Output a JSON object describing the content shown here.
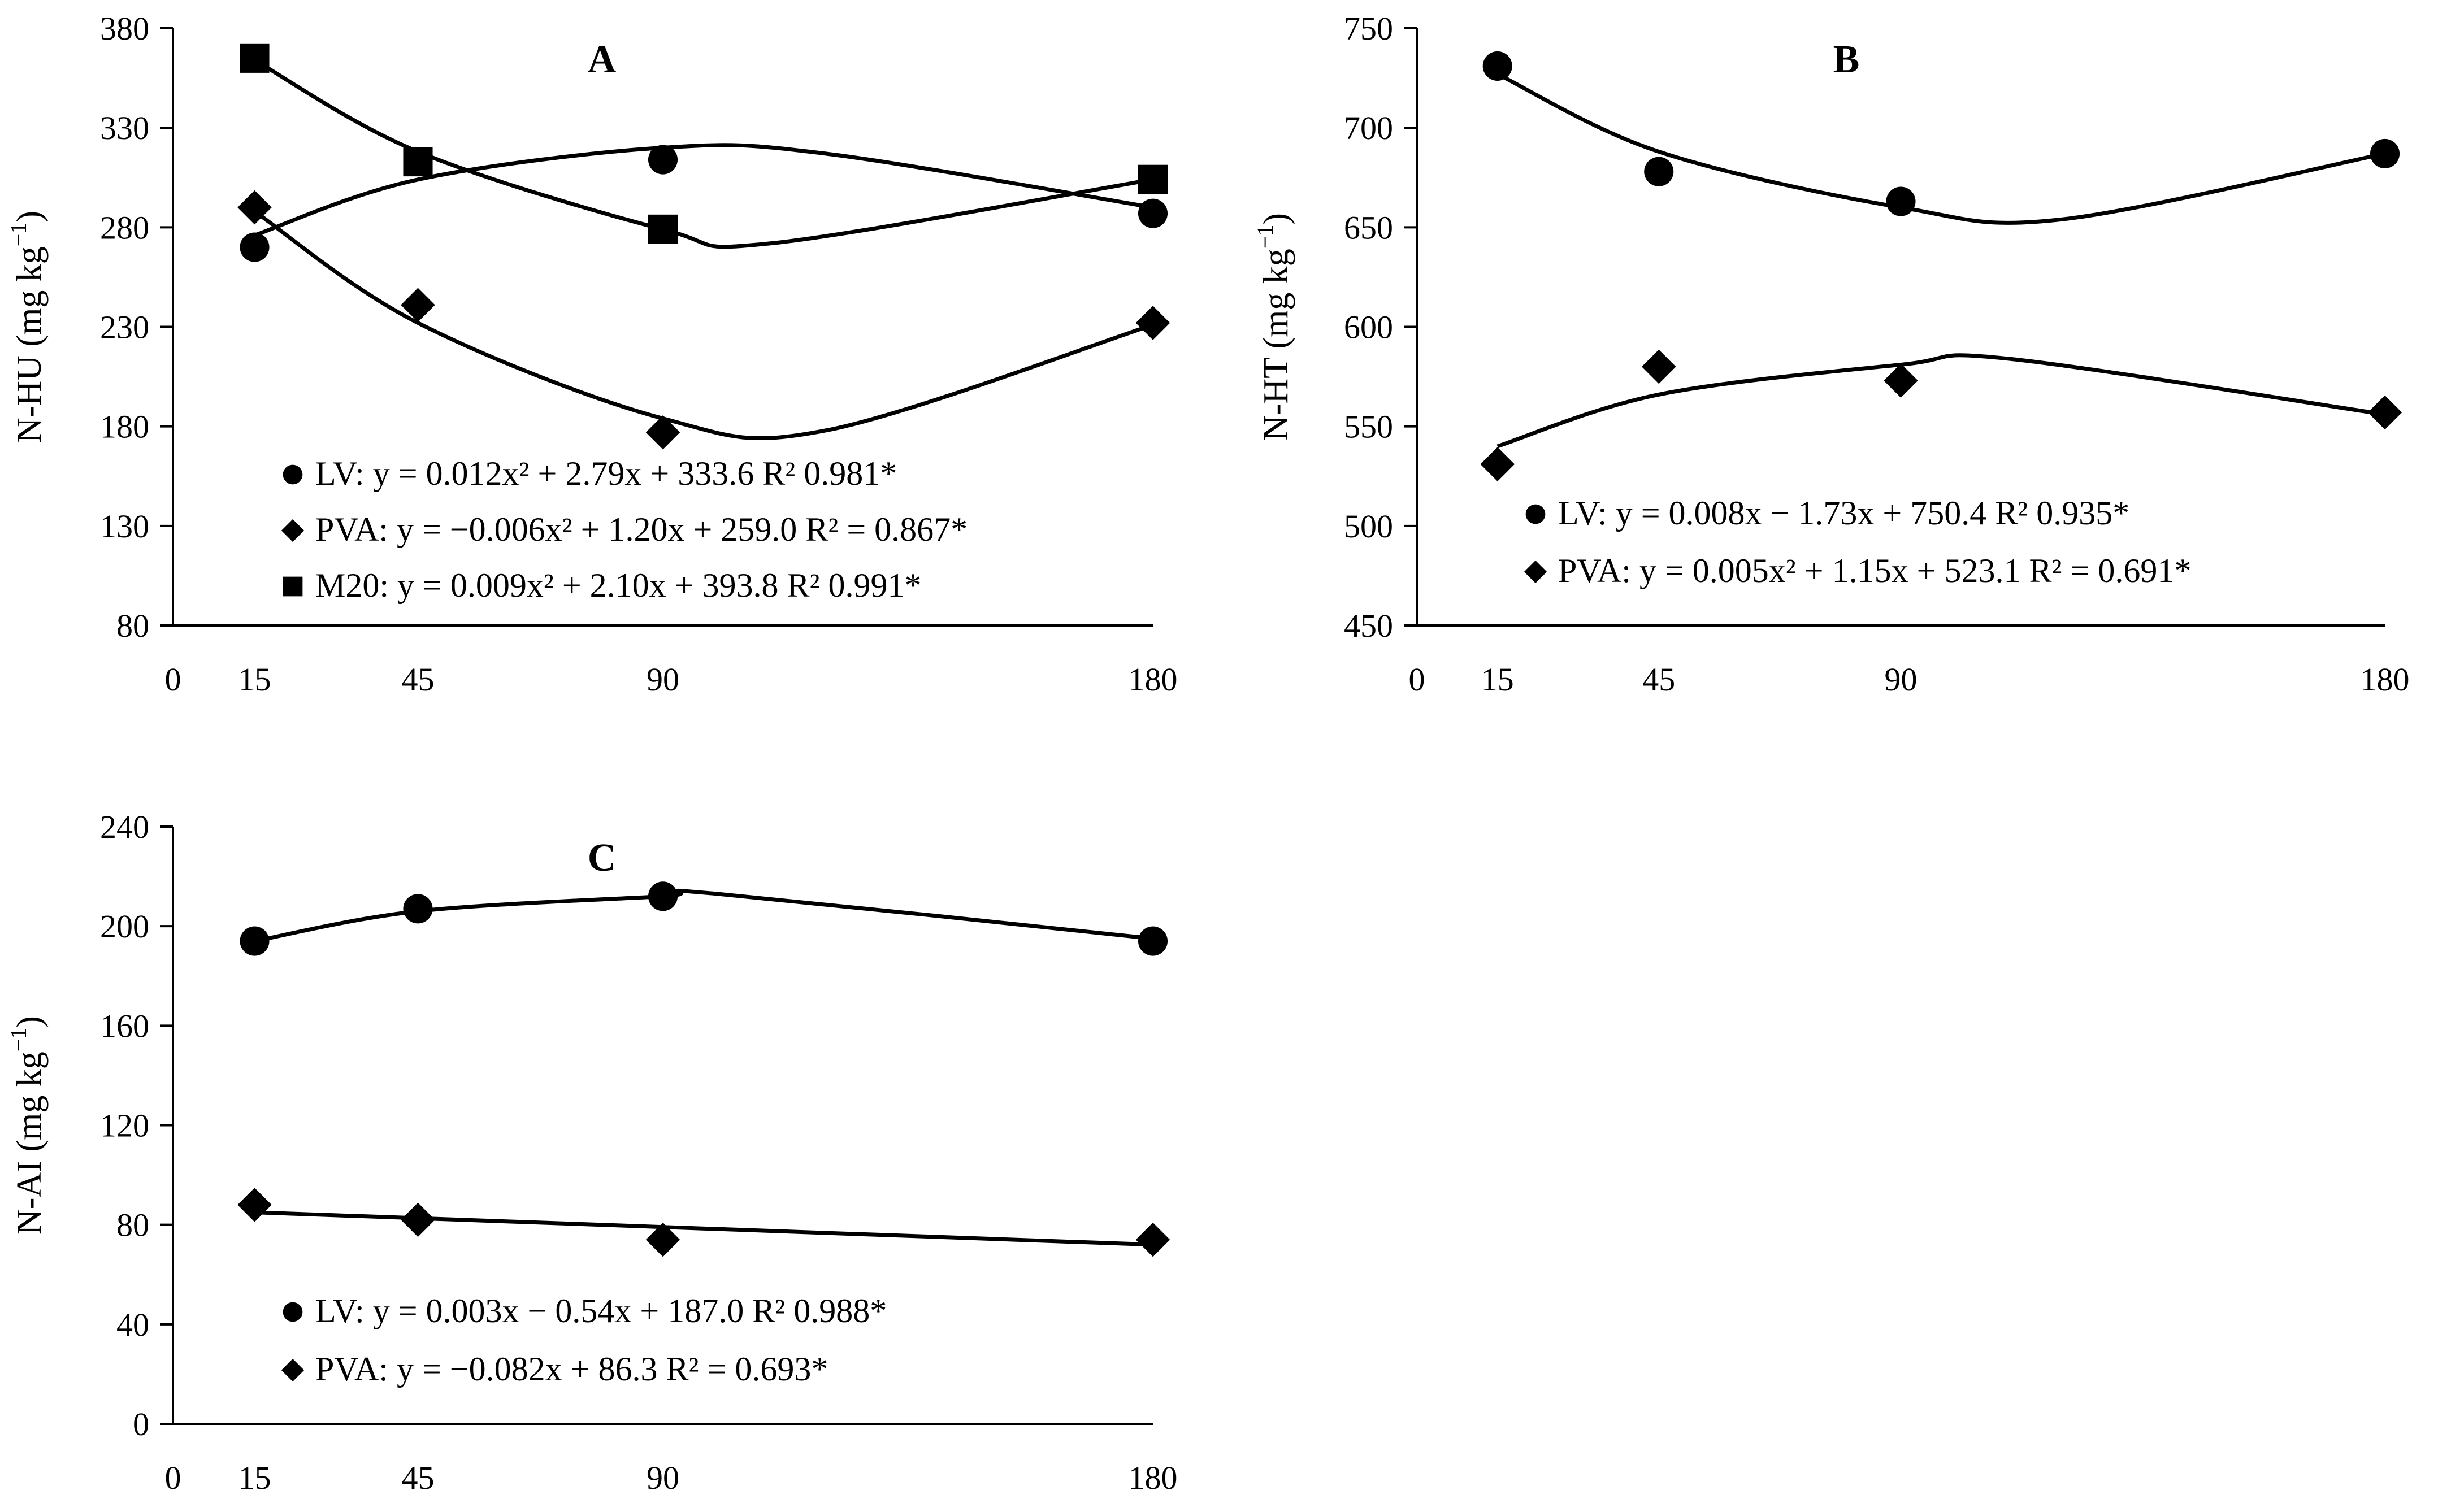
{
  "figure": {
    "background": "#ffffff",
    "ink": "#000000"
  },
  "chart_data": [
    {
      "type": "scatter",
      "panel_label": "A",
      "ylabel_main": "N-HU (mg kg",
      "ylabel_sup": "−1",
      "ylabel_close": ")",
      "xlim": [
        0,
        180
      ],
      "ylim": [
        80,
        380
      ],
      "x_ticks": [
        0,
        15,
        45,
        90,
        180
      ],
      "y_ticks": [
        80,
        130,
        180,
        230,
        280,
        330,
        380
      ],
      "series": [
        {
          "name": "LV",
          "marker": "circle",
          "points": [
            [
              15,
              270
            ],
            [
              45,
              null
            ],
            [
              90,
              314
            ],
            [
              180,
              287
            ]
          ],
          "fit_points": [
            [
              15,
              276
            ],
            [
              45,
              304
            ],
            [
              90,
              320
            ],
            [
              120,
              317
            ],
            [
              180,
              290
            ]
          ],
          "legend_text": "LV: y = 0.012x² + 2.79x + 333.6 R² 0.981*"
        },
        {
          "name": "PVA",
          "marker": "diamond",
          "points": [
            [
              15,
              290
            ],
            [
              45,
              241
            ],
            [
              90,
              177
            ],
            [
              180,
              232
            ]
          ],
          "fit_points": [
            [
              15,
              288
            ],
            [
              45,
              232
            ],
            [
              90,
              184
            ],
            [
              120,
              178
            ],
            [
              180,
              231
            ]
          ],
          "legend_text": "PVA: y = −0.006x² + 1.20x + 259.0 R² = 0.867*"
        },
        {
          "name": "M20",
          "marker": "square",
          "points": [
            [
              15,
              365
            ],
            [
              45,
              313
            ],
            [
              90,
              279
            ],
            [
              180,
              304
            ]
          ],
          "fit_points": [
            [
              15,
              364
            ],
            [
              45,
              318
            ],
            [
              90,
              279
            ],
            [
              110,
              272
            ],
            [
              180,
              304
            ]
          ],
          "legend_text": "M20: y = 0.009x² + 2.10x + 393.8 R² 0.991*"
        }
      ]
    },
    {
      "type": "scatter",
      "panel_label": "B",
      "ylabel_main": "N-HT (mg kg",
      "ylabel_sup": "−1",
      "ylabel_close": ")",
      "xlim": [
        0,
        180
      ],
      "ylim": [
        450,
        750
      ],
      "x_ticks": [
        0,
        15,
        45,
        90,
        180
      ],
      "y_ticks": [
        450,
        500,
        550,
        600,
        650,
        700,
        750
      ],
      "series": [
        {
          "name": "LV",
          "marker": "circle",
          "points": [
            [
              15,
              731
            ],
            [
              45,
              678
            ],
            [
              90,
              663
            ],
            [
              180,
              687
            ]
          ],
          "fit_points": [
            [
              15,
              727
            ],
            [
              45,
              688
            ],
            [
              90,
              660
            ],
            [
              120,
              654
            ],
            [
              180,
              687
            ]
          ],
          "legend_text": "LV: y = 0.008x − 1.73x + 750.4 R² 0.935*"
        },
        {
          "name": "PVA",
          "marker": "diamond",
          "points": [
            [
              15,
              531
            ],
            [
              45,
              580
            ],
            [
              90,
              573
            ],
            [
              180,
              557
            ]
          ],
          "fit_points": [
            [
              15,
              540
            ],
            [
              45,
              566
            ],
            [
              90,
              581
            ],
            [
              110,
              584
            ],
            [
              180,
              556
            ]
          ],
          "legend_text": "PVA: y = 0.005x² + 1.15x + 523.1 R² = 0.691*"
        }
      ]
    },
    {
      "type": "scatter",
      "panel_label": "C",
      "ylabel_main": "N-AI (mg kg",
      "ylabel_sup": "−1",
      "ylabel_close": ")",
      "xlim": [
        0,
        180
      ],
      "ylim": [
        0,
        240
      ],
      "x_ticks": [
        0,
        15,
        45,
        90,
        180
      ],
      "y_ticks": [
        0,
        40,
        80,
        120,
        160,
        200,
        240
      ],
      "series": [
        {
          "name": "LV",
          "marker": "circle",
          "points": [
            [
              15,
              194
            ],
            [
              45,
              207
            ],
            [
              90,
              212
            ],
            [
              180,
              194
            ]
          ],
          "fit_points": [
            [
              15,
              194
            ],
            [
              45,
              206
            ],
            [
              90,
              212
            ],
            [
              100,
              213
            ],
            [
              180,
              195
            ]
          ],
          "legend_text": "LV: y = 0.003x − 0.54x + 187.0 R² 0.988*"
        },
        {
          "name": "PVA",
          "marker": "diamond",
          "points": [
            [
              15,
              88
            ],
            [
              45,
              82
            ],
            [
              90,
              74
            ],
            [
              180,
              74
            ]
          ],
          "fit_points": [
            [
              15,
              85
            ],
            [
              180,
              72
            ]
          ],
          "legend_text": "PVA: y = −0.082x + 86.3 R² = 0.693*"
        }
      ]
    }
  ]
}
